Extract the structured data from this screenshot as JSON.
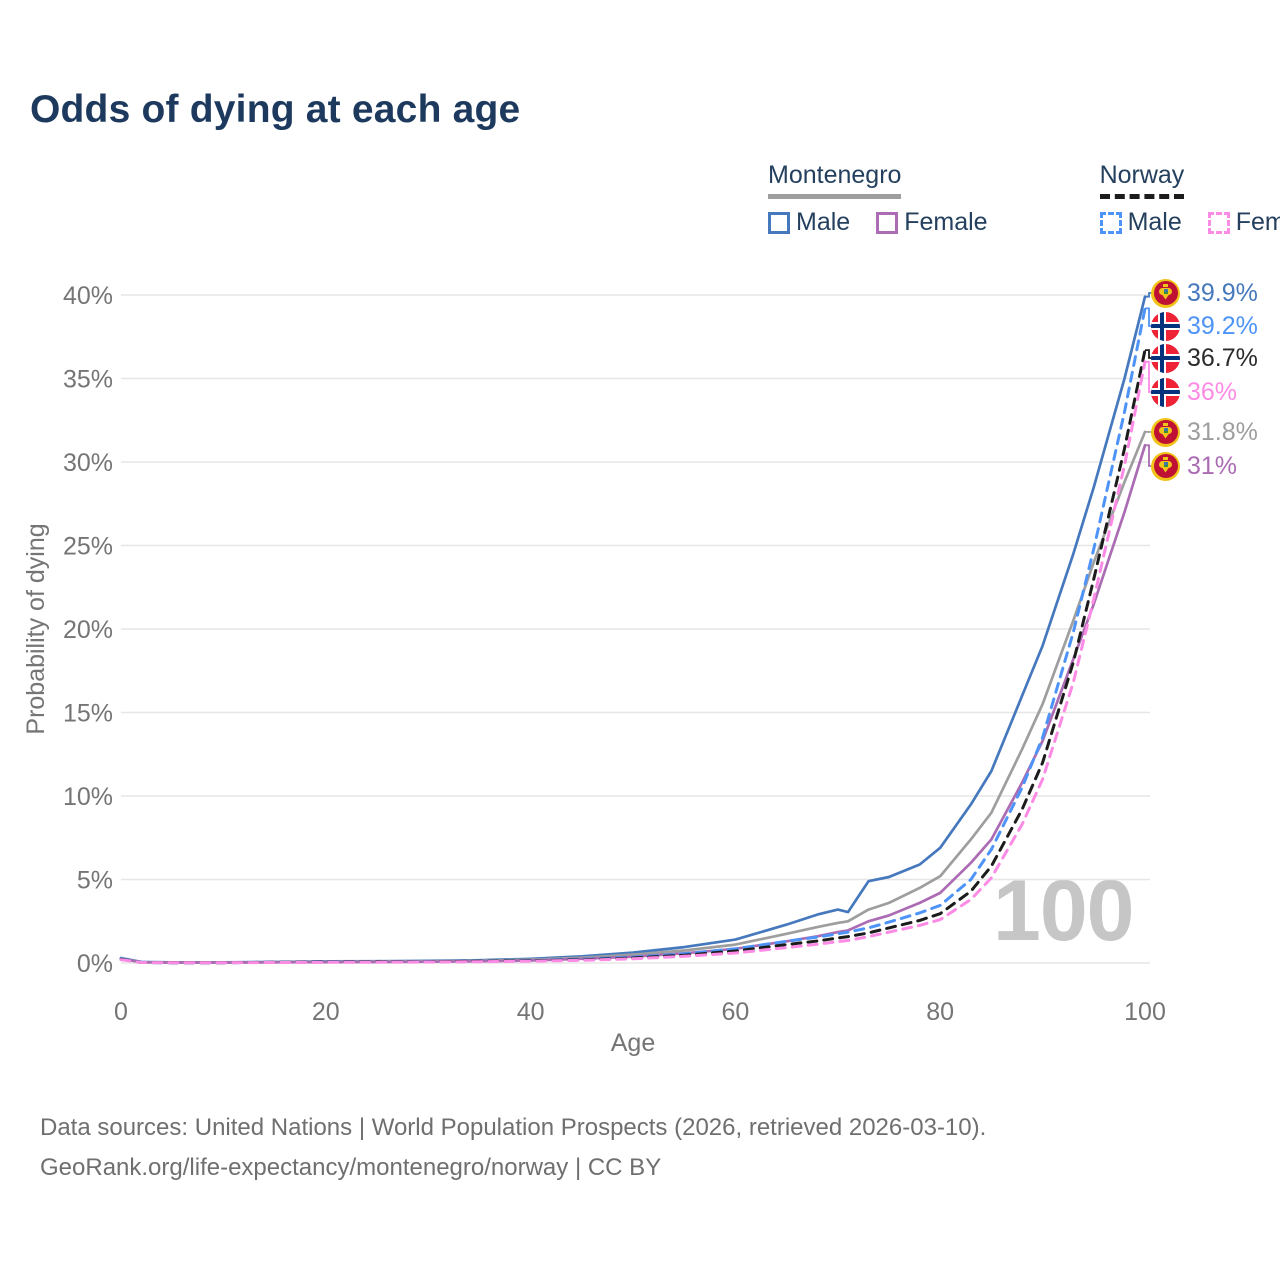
{
  "title": "Odds of dying at each age",
  "theme": {
    "title_color": "#1d3a5e",
    "legend_text_color": "#24405e",
    "axis_text_color": "#757575",
    "grid_color": "#e6e6e6",
    "watermark_color": "#c6c6c6",
    "footer_color": "#6f6f6f"
  },
  "legend": {
    "groups": [
      {
        "name": "Montenegro",
        "line_style": "solid",
        "line_color": "#9e9e9e",
        "items": [
          {
            "label": "Male",
            "color": "#4678bd",
            "dashed": false
          },
          {
            "label": "Female",
            "color": "#ab6cb3",
            "dashed": false
          }
        ]
      },
      {
        "name": "Norway",
        "line_style": "dashed",
        "line_color": "#1c1c1c",
        "items": [
          {
            "label": "Male",
            "color": "#4e94f8",
            "dashed": true
          },
          {
            "label": "Female",
            "color": "#fc8be5",
            "dashed": true
          }
        ]
      }
    ]
  },
  "chart_data": {
    "type": "line",
    "title": "Odds of dying at each age",
    "xlabel": "Age",
    "ylabel": "Probability of dying",
    "xlim": [
      0,
      100
    ],
    "ylim": [
      0,
      40
    ],
    "x_ticks": [
      0,
      20,
      40,
      60,
      80,
      100
    ],
    "y_ticks": [
      0,
      5,
      10,
      15,
      20,
      25,
      30,
      35,
      40
    ],
    "y_tick_labels": [
      "0%",
      "5%",
      "10%",
      "15%",
      "20%",
      "25%",
      "30%",
      "35%",
      "40%"
    ],
    "grid": "horizontal",
    "legend_position": "top-right",
    "hover_age_label": "100",
    "x": [
      0,
      2,
      5,
      10,
      15,
      20,
      25,
      30,
      35,
      40,
      45,
      50,
      55,
      60,
      65,
      68,
      70,
      71,
      73,
      75,
      78,
      80,
      83,
      85,
      88,
      90,
      93,
      95,
      98,
      100
    ],
    "series": [
      {
        "name": "Montenegro Male",
        "country": "Montenegro",
        "sex": "Male",
        "color": "#4678bd",
        "dash": "solid",
        "end_value_pct": 39.9,
        "values": [
          0.3,
          0.06,
          0.04,
          0.04,
          0.06,
          0.1,
          0.11,
          0.13,
          0.17,
          0.25,
          0.4,
          0.62,
          0.95,
          1.4,
          2.3,
          2.9,
          3.2,
          3.05,
          4.9,
          5.15,
          5.9,
          6.9,
          9.5,
          11.5,
          16.0,
          19.0,
          24.5,
          28.5,
          35.0,
          39.9
        ]
      },
      {
        "name": "Montenegro Both",
        "country": "Montenegro",
        "sex": "Both",
        "color": "#9e9e9e",
        "dash": "solid",
        "end_value_pct": 31.8,
        "values": [
          0.28,
          0.05,
          0.03,
          0.03,
          0.05,
          0.08,
          0.09,
          0.1,
          0.14,
          0.2,
          0.32,
          0.5,
          0.75,
          1.1,
          1.75,
          2.15,
          2.4,
          2.5,
          3.2,
          3.6,
          4.5,
          5.2,
          7.4,
          9.0,
          12.8,
          15.5,
          20.5,
          24.0,
          28.8,
          31.8
        ]
      },
      {
        "name": "Montenegro Female",
        "country": "Montenegro",
        "sex": "Female",
        "color": "#ab6cb3",
        "dash": "solid",
        "end_value_pct": 31.0,
        "values": [
          0.25,
          0.04,
          0.03,
          0.03,
          0.04,
          0.05,
          0.06,
          0.08,
          0.1,
          0.15,
          0.25,
          0.38,
          0.58,
          0.85,
          1.3,
          1.6,
          1.85,
          1.95,
          2.5,
          2.85,
          3.6,
          4.2,
          6.0,
          7.4,
          10.8,
          13.3,
          18.2,
          21.5,
          27.0,
          31.0
        ]
      },
      {
        "name": "Norway Male",
        "country": "Norway",
        "sex": "Male",
        "color": "#4e94f8",
        "dash": "dashed",
        "end_value_pct": 39.2,
        "values": [
          0.25,
          0.04,
          0.02,
          0.02,
          0.05,
          0.07,
          0.08,
          0.09,
          0.11,
          0.15,
          0.22,
          0.35,
          0.55,
          0.85,
          1.3,
          1.55,
          1.75,
          1.85,
          2.1,
          2.45,
          3.0,
          3.45,
          5.0,
          6.8,
          10.5,
          13.5,
          19.8,
          24.8,
          33.0,
          39.2
        ]
      },
      {
        "name": "Norway Both",
        "country": "Norway",
        "sex": "Both",
        "color": "#1c1c1c",
        "dash": "dashed",
        "end_value_pct": 36.7,
        "values": [
          0.22,
          0.03,
          0.02,
          0.02,
          0.04,
          0.06,
          0.07,
          0.08,
          0.1,
          0.13,
          0.19,
          0.3,
          0.47,
          0.72,
          1.1,
          1.32,
          1.5,
          1.58,
          1.8,
          2.1,
          2.55,
          2.95,
          4.3,
          5.8,
          9.2,
          12.0,
          18.0,
          23.0,
          30.8,
          36.7
        ]
      },
      {
        "name": "Norway Female",
        "country": "Norway",
        "sex": "Female",
        "color": "#fc8be5",
        "dash": "dashed",
        "end_value_pct": 36.0,
        "values": [
          0.2,
          0.03,
          0.015,
          0.015,
          0.03,
          0.04,
          0.05,
          0.06,
          0.08,
          0.11,
          0.16,
          0.25,
          0.4,
          0.6,
          0.92,
          1.12,
          1.28,
          1.35,
          1.58,
          1.85,
          2.25,
          2.6,
          3.8,
          5.1,
          8.3,
          11.0,
          16.8,
          21.8,
          29.8,
          36.0
        ]
      }
    ],
    "end_labels": [
      {
        "value": "39.9%",
        "color": "#4678bd",
        "flag": "montenegro",
        "series_index": 0
      },
      {
        "value": "39.2%",
        "color": "#4e94f8",
        "flag": "norway",
        "series_index": 3
      },
      {
        "value": "36.7%",
        "color": "#2b2b2b",
        "flag": "norway",
        "series_index": 4
      },
      {
        "value": "36%",
        "color": "#fc8be5",
        "flag": "norway",
        "series_index": 5
      },
      {
        "value": "31.8%",
        "color": "#9e9e9e",
        "flag": "montenegro",
        "series_index": 1
      },
      {
        "value": "31%",
        "color": "#ab6cb3",
        "flag": "montenegro",
        "series_index": 2
      }
    ]
  },
  "footer": {
    "line1": "Data sources: United Nations | World Population Prospects (2026, retrieved 2026-03-10).",
    "line2": "GeoRank.org/life-expectancy/montenegro/norway | CC BY"
  }
}
